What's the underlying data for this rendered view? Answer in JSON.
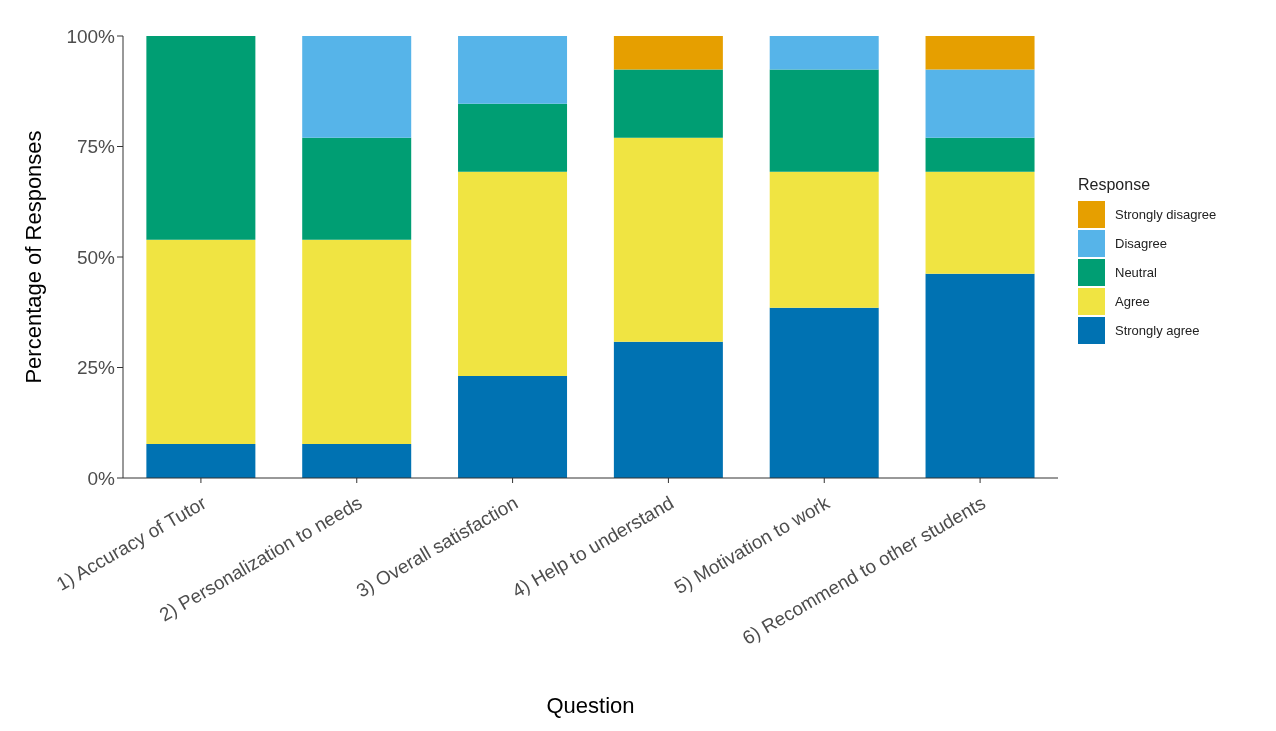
{
  "chart_data": {
    "type": "bar",
    "stacked": true,
    "xlabel": "Question",
    "ylabel": "Percentage of Responses",
    "legend_title": "Response",
    "legend": "right",
    "categories": [
      "1) Accuracy of Tutor",
      "2) Personalization to needs",
      "3) Overall satisfaction",
      "4) Help to understand",
      "5) Motivation to work",
      "6) Recommend to other students"
    ],
    "ylim": [
      0,
      100
    ],
    "yticks": [
      {
        "value": 0,
        "label": "0%"
      },
      {
        "value": 25,
        "label": "25%"
      },
      {
        "value": 50,
        "label": "50%"
      },
      {
        "value": 75,
        "label": "75%"
      },
      {
        "value": 100,
        "label": "100%"
      }
    ],
    "series": [
      {
        "name": "Strongly agree",
        "color": "#0072b2",
        "values": [
          7.7,
          7.7,
          23.1,
          30.8,
          38.5,
          46.2
        ]
      },
      {
        "name": "Agree",
        "color": "#f0e442",
        "values": [
          46.2,
          46.2,
          46.2,
          46.2,
          30.8,
          23.1
        ]
      },
      {
        "name": "Neutral",
        "color": "#009e73",
        "values": [
          46.1,
          23.1,
          15.4,
          15.4,
          23.1,
          7.7
        ]
      },
      {
        "name": "Disagree",
        "color": "#56b4e9",
        "values": [
          0,
          23.0,
          15.3,
          0,
          7.6,
          15.4
        ]
      },
      {
        "name": "Strongly disagree",
        "color": "#e69f00",
        "values": [
          0,
          0,
          0,
          7.6,
          0,
          7.6
        ]
      }
    ]
  }
}
